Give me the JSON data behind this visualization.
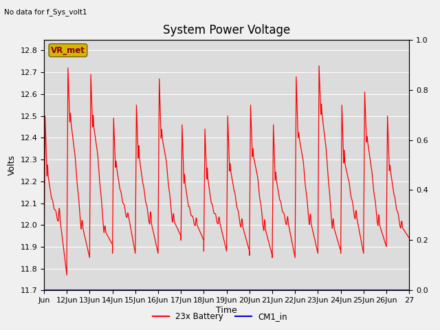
{
  "title": "System Power Voltage",
  "top_left_text": "No data for f_Sys_volt1",
  "xlabel": "Time",
  "ylabel": "Volts",
  "ylim_left": [
    11.7,
    12.85
  ],
  "ylim_right": [
    0.0,
    1.0
  ],
  "yticks_left": [
    11.7,
    11.8,
    11.9,
    12.0,
    12.1,
    12.2,
    12.3,
    12.4,
    12.5,
    12.6,
    12.7,
    12.8
  ],
  "yticks_right": [
    0.0,
    0.2,
    0.4,
    0.6,
    0.8,
    1.0
  ],
  "x_tick_labels": [
    "Jun",
    "12Jun",
    "13Jun",
    "14Jun",
    "15Jun",
    "16Jun",
    "17Jun",
    "18Jun",
    "19Jun",
    "20Jun",
    "21Jun",
    "22Jun",
    "23Jun",
    "24Jun",
    "25Jun",
    "26Jun",
    "27"
  ],
  "vr_met_label": "VR_met",
  "vr_met_box_color": "#d4b800",
  "vr_met_text_color": "#8b0000",
  "line_color_battery": "#ff0000",
  "line_color_cm1": "#0000cc",
  "legend_label_battery": "23x Battery",
  "legend_label_cm1": "CM1_in",
  "plot_bg_color": "#dcdcdc",
  "fig_bg_color": "#f0f0f0",
  "grid_color": "#ffffff",
  "title_fontsize": 12,
  "axis_fontsize": 9,
  "tick_fontsize": 8
}
